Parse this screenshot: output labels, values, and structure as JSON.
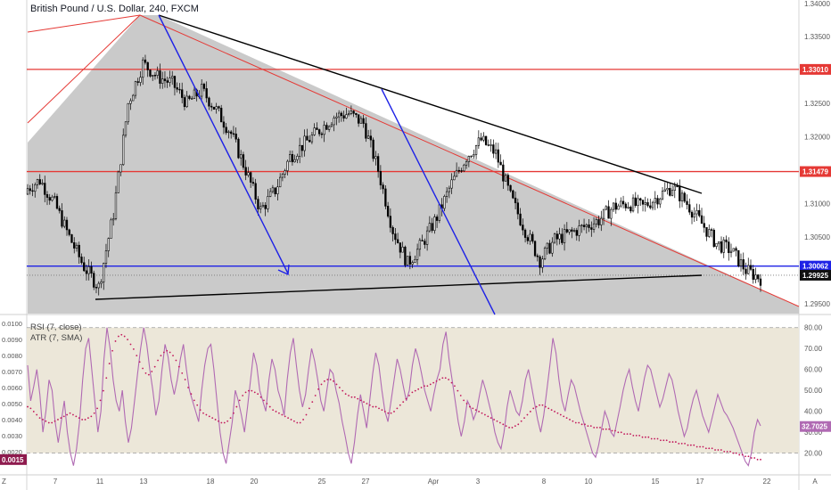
{
  "header": {
    "title": "British Pound / U.S. Dollar, 240, FXCM"
  },
  "indicators": {
    "rsi_label": "RSI (7, close)",
    "atr_label": "ATR (7, SMA)"
  },
  "colors": {
    "candle": "#000000",
    "shade": "#c4c4c4",
    "red_line": "#e53935",
    "blue_line": "#1e22e6",
    "trend_black": "#000000",
    "rsi_line": "#b06ab3",
    "rsi_band": "#ece7d9",
    "atr_dots": "#c2185b",
    "red_tag": "#e53935",
    "blue_tag": "#1e22e6",
    "black_tag": "#111111",
    "rsi_tag": "#b06ab3",
    "atr_tag": "#8e1a4e"
  },
  "chart_data": [
    {
      "type": "candlestick",
      "ylim": [
        1.2935,
        1.3405
      ],
      "yticks": [
        1.295,
        1.3,
        1.305,
        1.31,
        1.315,
        1.32,
        1.325,
        1.33,
        1.335,
        1.34
      ],
      "xticks": [
        "Z",
        "7",
        "11",
        "13",
        "18",
        "20",
        "25",
        "27",
        "Apr",
        "3",
        "8",
        "10",
        "15",
        "17",
        "22",
        "A"
      ],
      "bars_per_day": 6,
      "price_tags": [
        {
          "value": 1.3301,
          "label": "1.33010",
          "style": "red"
        },
        {
          "value": 1.31479,
          "label": "1.31479",
          "style": "red"
        },
        {
          "value": 1.30062,
          "label": "1.30062",
          "style": "blue"
        },
        {
          "value": 1.29925,
          "label": "1.29925",
          "style": "black"
        }
      ],
      "horizontal_lines": [
        {
          "value": 1.3301,
          "color": "red"
        },
        {
          "value": 1.31479,
          "color": "red"
        },
        {
          "value": 1.30062,
          "color": "blue"
        }
      ],
      "day_closes": [
        1.312,
        1.3135,
        1.31,
        1.305,
        1.3005,
        1.2975,
        1.3085,
        1.325,
        1.331,
        1.329,
        1.328,
        1.325,
        1.327,
        1.324,
        1.3205,
        1.315,
        1.309,
        1.312,
        1.317,
        1.319,
        1.321,
        1.323,
        1.3235,
        1.322,
        1.315,
        1.306,
        1.301,
        1.304,
        1.308,
        1.313,
        1.317,
        1.3195,
        1.3175,
        1.311,
        1.306,
        1.3015,
        1.3045,
        1.3055,
        1.3065,
        1.3075,
        1.3095,
        1.31,
        1.3095,
        1.311,
        1.3125,
        1.31,
        1.307,
        1.304,
        1.303,
        1.3,
        1.2988
      ]
    },
    {
      "type": "line",
      "name": "RSI (7, close)",
      "ylim": [
        10,
        85
      ],
      "yticks": [
        20,
        30,
        40,
        50,
        60,
        70,
        80
      ],
      "band": [
        20,
        80
      ],
      "last": 32.7025,
      "values": [
        62,
        45,
        52,
        60,
        48,
        30,
        40,
        55,
        50,
        35,
        25,
        35,
        45,
        30,
        20,
        14,
        22,
        35,
        55,
        70,
        75,
        60,
        45,
        30,
        40,
        65,
        80,
        70,
        55,
        45,
        40,
        50,
        35,
        25,
        32,
        45,
        58,
        70,
        80,
        72,
        60,
        50,
        38,
        45,
        60,
        72,
        66,
        55,
        48,
        55,
        65,
        72,
        60,
        50,
        45,
        40,
        35,
        50,
        62,
        70,
        72,
        60,
        45,
        30,
        20,
        15,
        25,
        35,
        50,
        45,
        38,
        30,
        42,
        55,
        68,
        62,
        50,
        45,
        40,
        55,
        65,
        60,
        50,
        45,
        38,
        55,
        68,
        75,
        62,
        50,
        42,
        48,
        60,
        70,
        64,
        55,
        45,
        40,
        50,
        60,
        58,
        50,
        44,
        35,
        28,
        20,
        15,
        25,
        38,
        48,
        40,
        32,
        45,
        58,
        68,
        62,
        50,
        40,
        35,
        45,
        55,
        65,
        60,
        52,
        45,
        50,
        62,
        70,
        65,
        58,
        50,
        45,
        40,
        48,
        55,
        60,
        72,
        78,
        65,
        55,
        45,
        35,
        28,
        35,
        45,
        42,
        36,
        40,
        48,
        55,
        50,
        44,
        38,
        30,
        25,
        22,
        30,
        42,
        50,
        45,
        40,
        38,
        45,
        55,
        60,
        52,
        44,
        36,
        30,
        38,
        50,
        62,
        75,
        68,
        55,
        45,
        40,
        48,
        55,
        52,
        46,
        40,
        35,
        30,
        25,
        20,
        18,
        24,
        32,
        40,
        36,
        30,
        28,
        35,
        42,
        50,
        56,
        60,
        52,
        45,
        40,
        48,
        56,
        62,
        60,
        54,
        48,
        42,
        46,
        52,
        58,
        55,
        48,
        40,
        34,
        28,
        32,
        40,
        46,
        50,
        44,
        38,
        34,
        30,
        36,
        42,
        48,
        44,
        40,
        38,
        35,
        32,
        28,
        24,
        20,
        16,
        14,
        20,
        30,
        36,
        33
      ]
    },
    {
      "type": "scatter",
      "name": "ATR (7, SMA)",
      "ylim": [
        0.0006,
        0.0104
      ],
      "yticks": [
        0.002,
        0.003,
        0.004,
        0.005,
        0.006,
        0.007,
        0.008,
        0.009,
        0.01
      ],
      "last": 0.0015,
      "last_label": "0.0015",
      "values": [
        0.0048,
        0.0047,
        0.0045,
        0.0043,
        0.0041,
        0.004,
        0.0039,
        0.0038,
        0.0038,
        0.0039,
        0.004,
        0.0041,
        0.0042,
        0.0043,
        0.0044,
        0.0043,
        0.0042,
        0.0041,
        0.004,
        0.004,
        0.0041,
        0.0042,
        0.0044,
        0.0047,
        0.0052,
        0.0058,
        0.0066,
        0.0075,
        0.0083,
        0.0089,
        0.0092,
        0.0093,
        0.0092,
        0.009,
        0.0087,
        0.0084,
        0.008,
        0.0076,
        0.0072,
        0.0069,
        0.0068,
        0.007,
        0.0073,
        0.0077,
        0.008,
        0.0082,
        0.0083,
        0.0082,
        0.008,
        0.0077,
        0.0073,
        0.0069,
        0.0065,
        0.006,
        0.0056,
        0.0052,
        0.0049,
        0.0046,
        0.0044,
        0.0043,
        0.0042,
        0.0041,
        0.004,
        0.0039,
        0.0038,
        0.0038,
        0.0039,
        0.0041,
        0.0044,
        0.0048,
        0.0052,
        0.0055,
        0.0057,
        0.0058,
        0.0058,
        0.0057,
        0.0056,
        0.0054,
        0.0052,
        0.005,
        0.0048,
        0.0046,
        0.0045,
        0.0044,
        0.0043,
        0.0042,
        0.0041,
        0.004,
        0.0039,
        0.0038,
        0.0038,
        0.004,
        0.0043,
        0.0047,
        0.0051,
        0.0055,
        0.0059,
        0.0062,
        0.0064,
        0.0065,
        0.0065,
        0.0064,
        0.0062,
        0.006,
        0.0058,
        0.0056,
        0.0055,
        0.0054,
        0.0054,
        0.0053,
        0.0052,
        0.0051,
        0.005,
        0.0049,
        0.0048,
        0.0048,
        0.0047,
        0.0046,
        0.0045,
        0.0044,
        0.0044,
        0.0045,
        0.0047,
        0.0049,
        0.0051,
        0.0053,
        0.0055,
        0.0057,
        0.0058,
        0.0059,
        0.006,
        0.0061,
        0.0061,
        0.0062,
        0.0063,
        0.0064,
        0.0065,
        0.0066,
        0.0066,
        0.0065,
        0.0063,
        0.0061,
        0.0058,
        0.0055,
        0.0052,
        0.005,
        0.0048,
        0.0047,
        0.0046,
        0.0045,
        0.0044,
        0.0043,
        0.0042,
        0.0041,
        0.004,
        0.0039,
        0.0038,
        0.0037,
        0.0036,
        0.0035,
        0.0035,
        0.0036,
        0.0037,
        0.0039,
        0.0041,
        0.0043,
        0.0045,
        0.0047,
        0.0048,
        0.0049,
        0.0049,
        0.0048,
        0.0047,
        0.0046,
        0.0045,
        0.0044,
        0.0043,
        0.0042,
        0.0041,
        0.004,
        0.0039,
        0.0038,
        0.0038,
        0.0037,
        0.0037,
        0.0036,
        0.0036,
        0.0035,
        0.0035,
        0.0035,
        0.0034,
        0.0034,
        0.0034,
        0.0033,
        0.0033,
        0.0032,
        0.0032,
        0.0031,
        0.0031,
        0.0031,
        0.003,
        0.003,
        0.003,
        0.0029,
        0.0029,
        0.0029,
        0.0028,
        0.0028,
        0.0028,
        0.0027,
        0.0027,
        0.0027,
        0.0026,
        0.0026,
        0.0026,
        0.0025,
        0.0025,
        0.0025,
        0.0024,
        0.0024,
        0.0024,
        0.0023,
        0.0023,
        0.0023,
        0.0022,
        0.0022,
        0.0022,
        0.0021,
        0.0021,
        0.0021,
        0.002,
        0.002,
        0.002,
        0.0019,
        0.0019,
        0.0018,
        0.0018,
        0.0017,
        0.0017,
        0.0016,
        0.0016,
        0.0015,
        0.0015
      ]
    }
  ]
}
